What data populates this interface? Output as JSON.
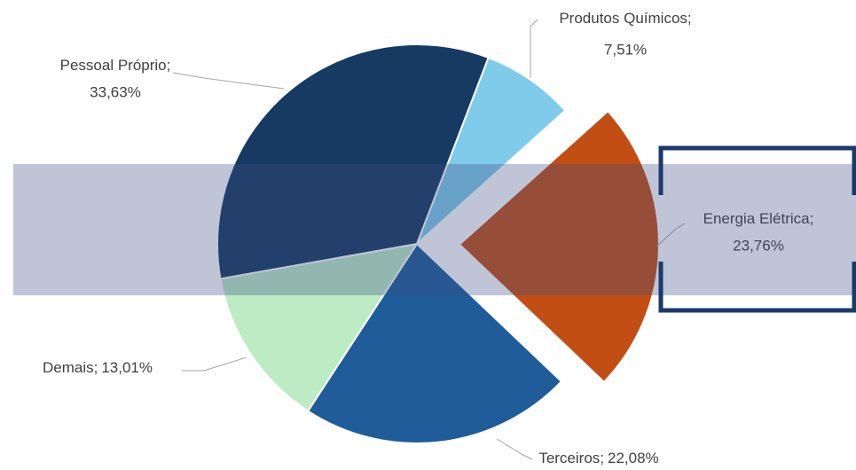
{
  "chart_data": {
    "type": "pie",
    "categories": [
      "Produtos Químicos",
      "Energia Elétrica",
      "Terceiros",
      "Demais",
      "Pessoal Próprio"
    ],
    "values": [
      7.51,
      23.76,
      22.08,
      13.01,
      33.63
    ],
    "value_labels": [
      "7,51%",
      "23,76%",
      "22,08%",
      "13,01%",
      "33,63%"
    ],
    "label_separator": ";",
    "colors": [
      "#7fcbea",
      "#c24e14",
      "#1f5c99",
      "#bdebc4",
      "#173a63"
    ],
    "exploded": [
      false,
      true,
      false,
      false,
      false
    ]
  }
}
